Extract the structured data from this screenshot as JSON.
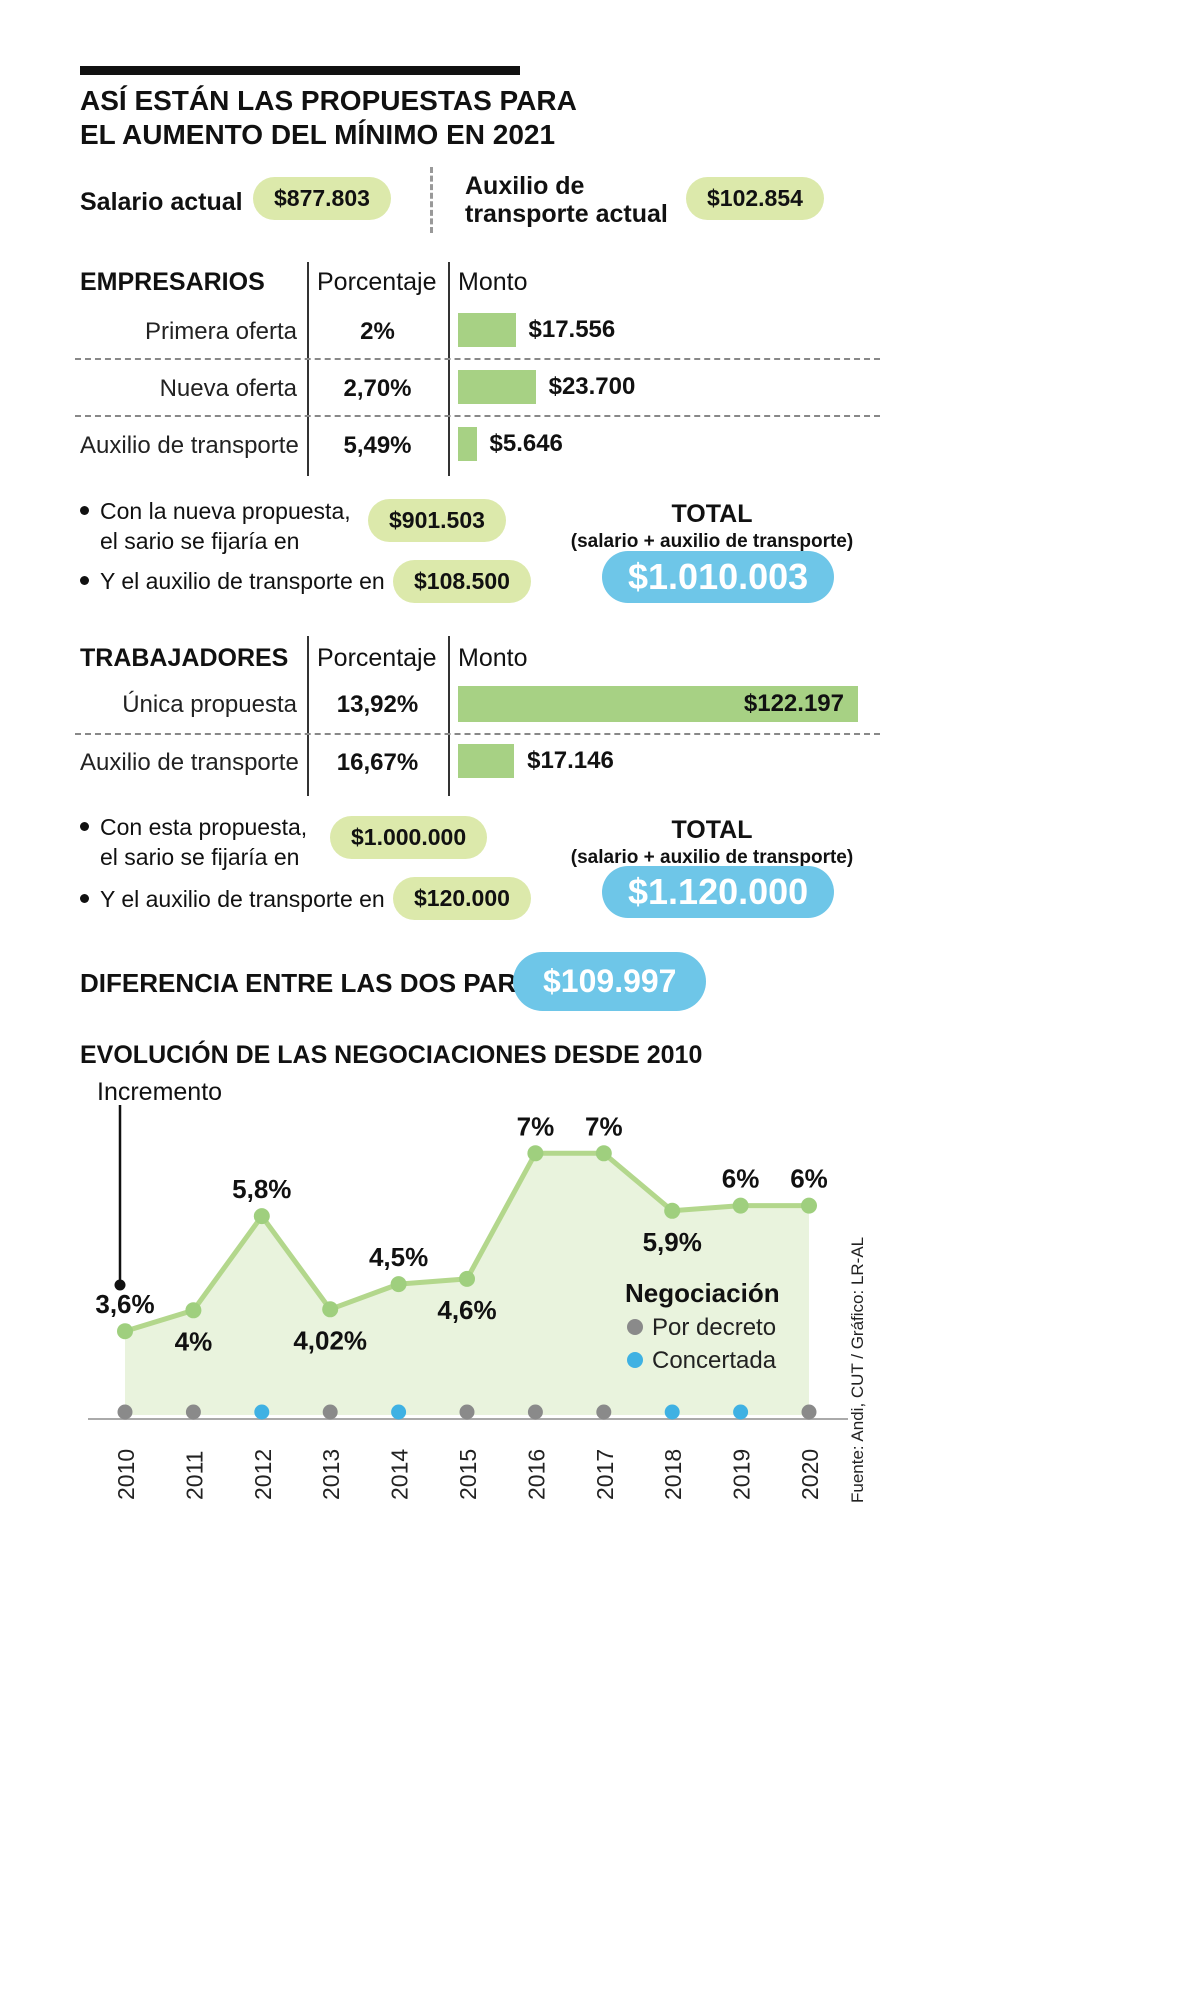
{
  "title": {
    "line1": "ASÍ ESTÁN LAS PROPUESTAS PARA",
    "line2": "EL AUMENTO DEL MÍNIMO EN 2021"
  },
  "current": {
    "salary_label": "Salario actual",
    "salary_value": "$877.803",
    "transport_label": "Auxilio de transporte actual",
    "transport_value": "$102.854"
  },
  "empresarios": {
    "header": {
      "name": "EMPRESARIOS",
      "col_pct": "Porcentaje",
      "col_amount": "Monto"
    },
    "rows": [
      {
        "label": "Primera oferta",
        "pct": "2%",
        "amount": "$17.556",
        "value": 17556
      },
      {
        "label": "Nueva oferta",
        "pct": "2,70%",
        "amount": "$23.700",
        "value": 23700
      },
      {
        "label": "Auxilio de transporte",
        "pct": "5,49%",
        "amount": "$5.646",
        "value": 5646
      }
    ],
    "summary": {
      "bullet1_line1": "Con la nueva propuesta,",
      "bullet1_line2": "el sario se fijaría en",
      "bullet1_value": "$901.503",
      "bullet2": "Y el auxilio de transporte en",
      "bullet2_value": "$108.500",
      "total_label": "TOTAL",
      "total_sub": "(salario + auxilio de transporte)",
      "total_value": "$1.010.003"
    }
  },
  "trabajadores": {
    "header": {
      "name": "TRABAJADORES",
      "col_pct": "Porcentaje",
      "col_amount": "Monto"
    },
    "rows": [
      {
        "label": "Única propuesta",
        "pct": "13,92%",
        "amount": "$122.197",
        "value": 122197
      },
      {
        "label": "Auxilio de transporte",
        "pct": "16,67%",
        "amount": "$17.146",
        "value": 17146
      }
    ],
    "summary": {
      "bullet1_line1": "Con esta propuesta,",
      "bullet1_line2": "el sario se fijaría en",
      "bullet1_value": "$1.000.000",
      "bullet2": "Y el auxilio de transporte en",
      "bullet2_value": "$120.000",
      "total_label": "TOTAL",
      "total_sub": "(salario + auxilio de transporte)",
      "total_value": "$1.120.000"
    }
  },
  "difference": {
    "label": "DIFERENCIA ENTRE LAS DOS PARTES",
    "value": "$109.997"
  },
  "chart_data": {
    "type": "area",
    "title": "EVOLUCIÓN DE LAS NEGOCIACIONES DESDE 2010",
    "ylabel": "Incremento",
    "categories": [
      "2010",
      "2011",
      "2012",
      "2013",
      "2014",
      "2015",
      "2016",
      "2017",
      "2018",
      "2019",
      "2020"
    ],
    "values": [
      3.6,
      4,
      5.8,
      4.02,
      4.5,
      4.6,
      7,
      7,
      5.9,
      6,
      6
    ],
    "labels": [
      "3,6%",
      "4%",
      "5,8%",
      "4,02%",
      "4,5%",
      "4,6%",
      "7%",
      "7%",
      "5,9%",
      "6%",
      "6%"
    ],
    "label_pos": [
      "above",
      "below",
      "above",
      "below",
      "above",
      "below",
      "above",
      "above",
      "below",
      "above",
      "above"
    ],
    "negotiation": [
      "decreto",
      "decreto",
      "concertada",
      "decreto",
      "concertada",
      "decreto",
      "decreto",
      "decreto",
      "concertada",
      "concertada",
      "decreto"
    ],
    "ylim": [
      2,
      7.5
    ],
    "grid": false,
    "legend": {
      "title": "Negociación",
      "position": "inside-right",
      "items": [
        {
          "label": "Por decreto",
          "color": "#8a8a8a",
          "key": "decreto"
        },
        {
          "label": "Concertada",
          "color": "#3fb1e3",
          "key": "concertada"
        }
      ]
    },
    "source": "Fuente: Andi, CUT / Gráfico: LR-AL"
  },
  "colors": {
    "ink": "#111111",
    "green_pill": "#dce9ab",
    "green_bar": "#a7d184",
    "blue_pill": "#6ec6e8",
    "chart_line": "#b3d78c",
    "chart_area": "#e9f3dd",
    "chart_dot": "#9fcf7e",
    "decreto": "#8a8a8a",
    "concertada": "#3fb1e3"
  }
}
